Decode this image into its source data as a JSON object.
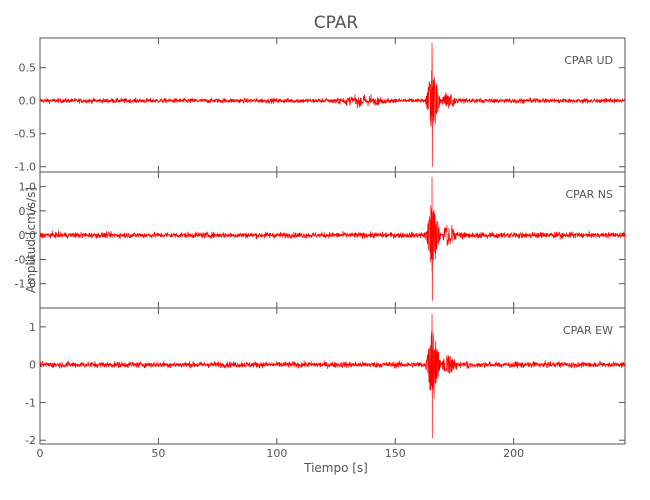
{
  "chart_data": {
    "type": "line",
    "title": "CPAR",
    "xlabel": "Tiempo [s]",
    "ylabel": "Amplitud [cm/s/s]",
    "xlim": [
      0,
      247
    ],
    "x_ticks": [
      0,
      50,
      100,
      150,
      200
    ],
    "x_tick_labels": [
      "0",
      "50",
      "100",
      "150",
      "200"
    ],
    "line_color": "#ff0000",
    "axis_color": "#555555",
    "grid": false,
    "panels": [
      {
        "label": "CPAR   UD",
        "ylim": [
          -1.08,
          0.95
        ],
        "y_ticks": [
          -1.0,
          -0.5,
          0.0,
          0.5
        ],
        "y_tick_labels": [
          "-1.0",
          "-0.5",
          "0.0",
          "0.5"
        ],
        "noise_amp": 0.018,
        "precursor": {
          "start": 120,
          "end": 150,
          "amp": 0.05
        },
        "event": {
          "onset": 162,
          "peak_time": 165.5,
          "peak_pos": 0.88,
          "peak_neg": -1.0,
          "decay": 4.5
        }
      },
      {
        "label": "CPAR   NS",
        "ylim": [
          -1.5,
          1.3
        ],
        "y_ticks": [
          -1.0,
          -0.5,
          0.0,
          0.5,
          1.0
        ],
        "y_tick_labels": [
          "-1.0",
          "-0.5",
          "0.0",
          "0.5",
          "1.0"
        ],
        "noise_amp": 0.03,
        "precursor": null,
        "event": {
          "onset": 162,
          "peak_time": 165.5,
          "peak_pos": 1.2,
          "peak_neg": -1.35,
          "decay": 5.0
        }
      },
      {
        "label": "CPAR   EW",
        "ylim": [
          -2.1,
          1.5
        ],
        "y_ticks": [
          -2,
          -1,
          0,
          1
        ],
        "y_tick_labels": [
          "-2",
          "-1",
          "0",
          "1"
        ],
        "noise_amp": 0.04,
        "precursor": null,
        "event": {
          "onset": 162,
          "peak_time": 165.5,
          "peak_pos": 1.35,
          "peak_neg": -1.95,
          "decay": 5.0
        }
      }
    ]
  }
}
